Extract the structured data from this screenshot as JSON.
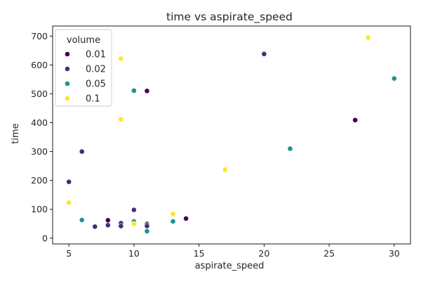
{
  "chart_data": {
    "type": "scatter",
    "title": "time vs aspirate_speed",
    "xlabel": "aspirate_speed",
    "ylabel": "time",
    "xlim": [
      3.75,
      31.25
    ],
    "ylim": [
      -20,
      735
    ],
    "xticks": [
      5,
      10,
      15,
      20,
      25,
      30
    ],
    "yticks": [
      0,
      100,
      200,
      300,
      400,
      500,
      600,
      700
    ],
    "grid": false,
    "legend": {
      "title": "volume",
      "placement": "top-left",
      "entries": [
        "0.01",
        "0.02",
        "0.05",
        "0.1"
      ]
    },
    "series": [
      {
        "name": "0.01",
        "color": "#440154",
        "points": [
          [
            8,
            62
          ],
          [
            11,
            510
          ],
          [
            11,
            50
          ],
          [
            11,
            47
          ],
          [
            14,
            68
          ],
          [
            27,
            409
          ]
        ]
      },
      {
        "name": "0.02",
        "color": "#472c7a",
        "points": [
          [
            5,
            195
          ],
          [
            6,
            300
          ],
          [
            7,
            40
          ],
          [
            8,
            45
          ],
          [
            9,
            52
          ],
          [
            9,
            42
          ],
          [
            10,
            98
          ],
          [
            11,
            42
          ],
          [
            20,
            638
          ]
        ]
      },
      {
        "name": "0.05",
        "color": "#21918c",
        "points": [
          [
            6,
            63
          ],
          [
            10,
            511
          ],
          [
            10,
            58
          ],
          [
            11,
            24
          ],
          [
            13,
            58
          ],
          [
            22,
            310
          ],
          [
            30,
            553
          ]
        ]
      },
      {
        "name": "0.1",
        "color": "#fde725",
        "points": [
          [
            5,
            123
          ],
          [
            9,
            622
          ],
          [
            9,
            412
          ],
          [
            10,
            50
          ],
          [
            13,
            84
          ],
          [
            17,
            237
          ],
          [
            28,
            695
          ]
        ]
      }
    ]
  }
}
